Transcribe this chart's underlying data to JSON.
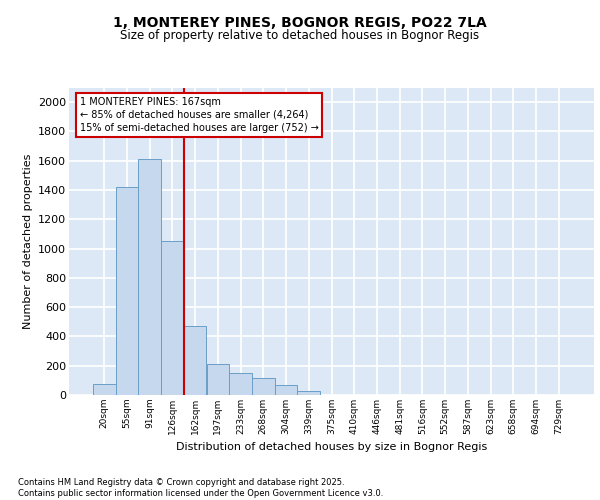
{
  "title": "1, MONTEREY PINES, BOGNOR REGIS, PO22 7LA",
  "subtitle": "Size of property relative to detached houses in Bognor Regis",
  "xlabel": "Distribution of detached houses by size in Bognor Regis",
  "ylabel": "Number of detached properties",
  "categories": [
    "20sqm",
    "55sqm",
    "91sqm",
    "126sqm",
    "162sqm",
    "197sqm",
    "233sqm",
    "268sqm",
    "304sqm",
    "339sqm",
    "375sqm",
    "410sqm",
    "446sqm",
    "481sqm",
    "516sqm",
    "552sqm",
    "587sqm",
    "623sqm",
    "658sqm",
    "694sqm",
    "729sqm"
  ],
  "values": [
    75,
    1420,
    1610,
    1050,
    470,
    210,
    150,
    115,
    70,
    30,
    0,
    0,
    0,
    0,
    0,
    0,
    0,
    0,
    0,
    0,
    0
  ],
  "bar_color": "#c5d8ee",
  "bar_edge_color": "#6a9fc8",
  "property_line_color": "#cc0000",
  "property_line_bin": 4,
  "annotation_text": "1 MONTEREY PINES: 167sqm\n← 85% of detached houses are smaller (4,264)\n15% of semi-detached houses are larger (752) →",
  "annotation_box_color": "#cc0000",
  "background_color": "#dce8f5",
  "grid_color": "white",
  "ylim": [
    0,
    2100
  ],
  "yticks": [
    0,
    200,
    400,
    600,
    800,
    1000,
    1200,
    1400,
    1600,
    1800,
    2000
  ],
  "footer_line1": "Contains HM Land Registry data © Crown copyright and database right 2025.",
  "footer_line2": "Contains public sector information licensed under the Open Government Licence v3.0."
}
